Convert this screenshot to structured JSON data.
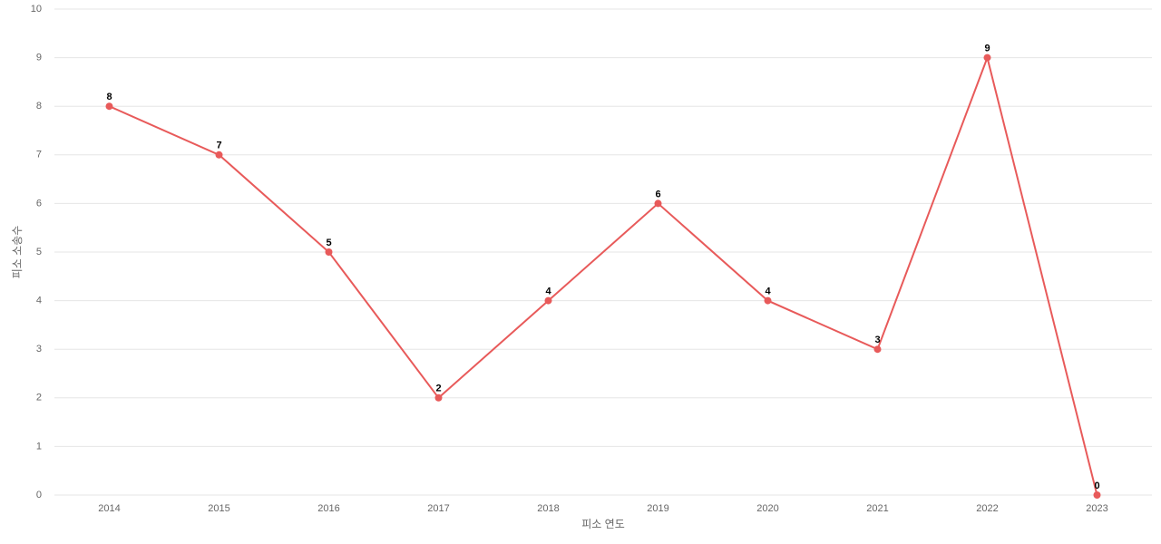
{
  "chart_data": {
    "type": "line",
    "x_label": "피소 연도",
    "y_label": "피소 소송수",
    "categories": [
      "2014",
      "2015",
      "2016",
      "2017",
      "2018",
      "2019",
      "2020",
      "2021",
      "2022",
      "2023"
    ],
    "values": [
      8,
      7,
      5,
      2,
      4,
      6,
      4,
      3,
      9,
      0
    ],
    "color": "#e85a5a",
    "ylim": [
      0,
      10
    ],
    "yticks": [
      0,
      1,
      2,
      3,
      4,
      5,
      6,
      7,
      8,
      9,
      10
    ],
    "grid": true
  }
}
